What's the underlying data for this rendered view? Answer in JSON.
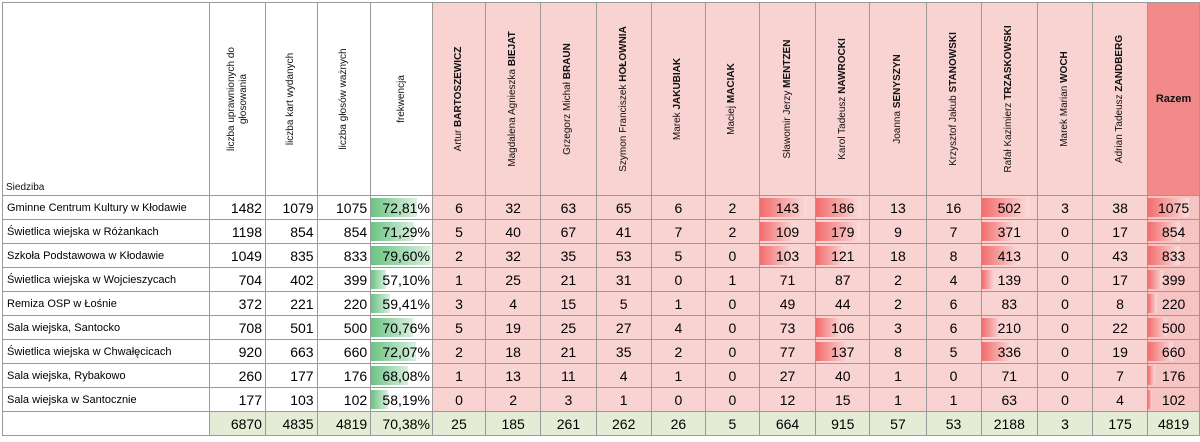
{
  "header": {
    "siedziba": "Siedziba",
    "uprawnionych_line1": "liczba uprawnionych do",
    "uprawnionych_line2": "głosowania",
    "kart": "liczba kart wydanych",
    "glosow": "liczba głosów ważnych",
    "frekwencja": "frekwencja",
    "razem": "Razem"
  },
  "candidates": [
    {
      "first": "Artur ",
      "last": "BARTOSZEWICZ"
    },
    {
      "first": "Magdalena Agnieszka ",
      "last": "BIEJAT"
    },
    {
      "first": "Grzegorz Michał ",
      "last": "BRAUN"
    },
    {
      "first": "Szymon Franciszek ",
      "last": "HOŁOWNIA"
    },
    {
      "first": "Marek ",
      "last": "JAKUBIAK"
    },
    {
      "first": "Maciej ",
      "last": "MACIAK"
    },
    {
      "first": "Sławomir Jerzy ",
      "last": "MENTZEN"
    },
    {
      "first": "Karol Tadeusz ",
      "last": "NAWROCKI"
    },
    {
      "first": "Joanna ",
      "last": "SENYSZYN"
    },
    {
      "first": "Krzysztof Jakub ",
      "last": "STANOWSKI"
    },
    {
      "first": "Rafał Kazimierz ",
      "last": "TRZASKOWSKI"
    },
    {
      "first": "Marek Marian ",
      "last": "WOCH"
    },
    {
      "first": "Adrian Tadeusz ",
      "last": "ZANDBERG"
    }
  ],
  "rows": [
    {
      "name": "Gminne Centrum Kultury w Kłodawie",
      "upr": "1482",
      "karty": "1079",
      "wazne": "1075",
      "freq": "72,81%",
      "freq_value": 72.81,
      "votes": [
        "6",
        "32",
        "63",
        "65",
        "6",
        "2",
        "143",
        "186",
        "13",
        "16",
        "502",
        "3",
        "38"
      ],
      "razem": "1075"
    },
    {
      "name": "Świetlica wiejska w Różankach",
      "upr": "1198",
      "karty": "854",
      "wazne": "854",
      "freq": "71,29%",
      "freq_value": 71.29,
      "votes": [
        "5",
        "40",
        "67",
        "41",
        "7",
        "2",
        "109",
        "179",
        "9",
        "7",
        "371",
        "0",
        "17"
      ],
      "razem": "854"
    },
    {
      "name": "Szkoła Podstawowa w Kłodawie",
      "upr": "1049",
      "karty": "835",
      "wazne": "833",
      "freq": "79,60%",
      "freq_value": 79.6,
      "votes": [
        "2",
        "32",
        "35",
        "53",
        "5",
        "0",
        "103",
        "121",
        "18",
        "8",
        "413",
        "0",
        "43"
      ],
      "razem": "833"
    },
    {
      "name": "Świetlica wiejska w Wojcieszycach",
      "upr": "704",
      "karty": "402",
      "wazne": "399",
      "freq": "57,10%",
      "freq_value": 57.1,
      "votes": [
        "1",
        "25",
        "21",
        "31",
        "0",
        "1",
        "71",
        "87",
        "2",
        "4",
        "139",
        "0",
        "17"
      ],
      "razem": "399"
    },
    {
      "name": "Remiza OSP w Łośnie",
      "upr": "372",
      "karty": "221",
      "wazne": "220",
      "freq": "59,41%",
      "freq_value": 59.41,
      "votes": [
        "3",
        "4",
        "15",
        "5",
        "1",
        "0",
        "49",
        "44",
        "2",
        "6",
        "83",
        "0",
        "8"
      ],
      "razem": "220"
    },
    {
      "name": "Sala wiejska, Santocko",
      "upr": "708",
      "karty": "501",
      "wazne": "500",
      "freq": "70,76%",
      "freq_value": 70.76,
      "votes": [
        "5",
        "19",
        "25",
        "27",
        "4",
        "0",
        "73",
        "106",
        "3",
        "6",
        "210",
        "0",
        "22"
      ],
      "razem": "500"
    },
    {
      "name": "Świetlica wiejska w Chwałęcicach",
      "upr": "920",
      "karty": "663",
      "wazne": "660",
      "freq": "72,07%",
      "freq_value": 72.07,
      "votes": [
        "2",
        "18",
        "21",
        "35",
        "2",
        "0",
        "77",
        "137",
        "8",
        "5",
        "336",
        "0",
        "19"
      ],
      "razem": "660"
    },
    {
      "name": "Sala wiejska, Rybakowo",
      "upr": "260",
      "karty": "177",
      "wazne": "176",
      "freq": "68,08%",
      "freq_value": 68.08,
      "votes": [
        "1",
        "13",
        "11",
        "4",
        "1",
        "0",
        "27",
        "40",
        "1",
        "0",
        "71",
        "0",
        "7"
      ],
      "razem": "176"
    },
    {
      "name": "Sala wiejska w Santocznie",
      "upr": "177",
      "karty": "103",
      "wazne": "102",
      "freq": "58,19%",
      "freq_value": 58.19,
      "votes": [
        "0",
        "2",
        "3",
        "1",
        "0",
        "0",
        "12",
        "15",
        "1",
        "1",
        "63",
        "0",
        "4"
      ],
      "razem": "102"
    }
  ],
  "total": {
    "upr": "6870",
    "karty": "4835",
    "wazne": "4819",
    "freq": "70,38%",
    "votes": [
      "25",
      "185",
      "261",
      "262",
      "26",
      "5",
      "664",
      "915",
      "57",
      "53",
      "2188",
      "3",
      "175"
    ],
    "razem": "4819"
  },
  "colors": {
    "green_bar": "#6cc383",
    "red_bar": "#f26d6d",
    "candidate_bg": "#f9d2d2",
    "razem_header": "#f38a8a",
    "total_bg": "#e4ecd5"
  }
}
